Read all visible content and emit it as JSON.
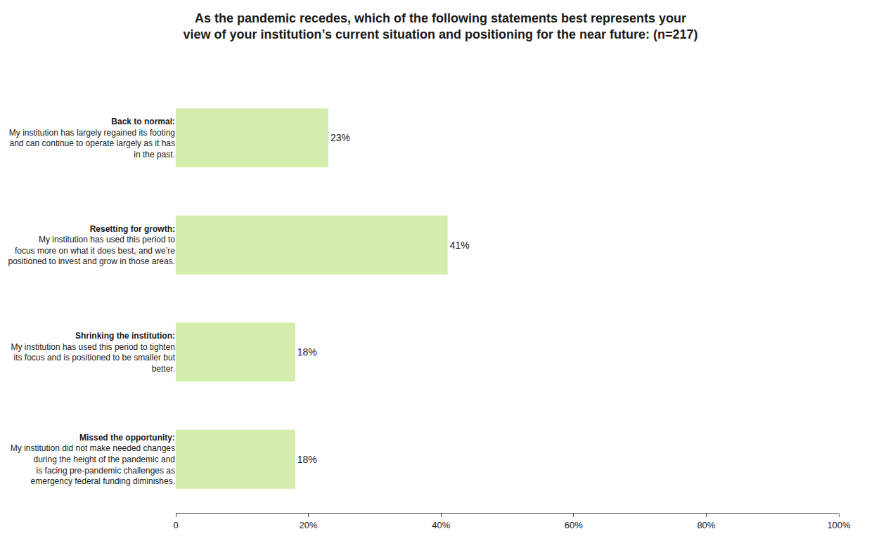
{
  "chart_data": {
    "type": "bar",
    "orientation": "horizontal",
    "title": "As the pandemic recedes, which of the following statements best represents your\nview of your institution’s current situation and positioning for the near future: (n=217)",
    "categories": [
      "Back to normal:\nMy institution has largely regained its footing\nand can continue to operate largely as it has\nin the past.",
      "Resetting for growth:\nMy institution has used this period to\nfocus more on what it does best, and we’re\npositioned to invest and grow in those areas.",
      "Shrinking the institution:\nMy institution has used this period to tighten\nits focus and is positioned to be smaller but\nbetter.",
      "Missed the opportunity:\nMy institution did not make needed changes\nduring the height of the pandemic and\nis facing pre-pandemic challenges as\nemergency federal funding diminishes."
    ],
    "values": [
      23,
      41,
      18,
      18
    ],
    "value_labels": [
      "23%",
      "41%",
      "18%",
      "18%"
    ],
    "data_labels": true,
    "color": "#d5edac",
    "xlim": [
      0,
      100
    ],
    "xticks": [
      0,
      {
        "value": 20,
        "label": "20%"
      },
      {
        "value": 40,
        "label": "40%"
      },
      {
        "value": 60,
        "label": "60%"
      },
      {
        "value": 80,
        "label": "80%"
      },
      {
        "value": 100,
        "label": "100%"
      }
    ],
    "grid": false
  }
}
